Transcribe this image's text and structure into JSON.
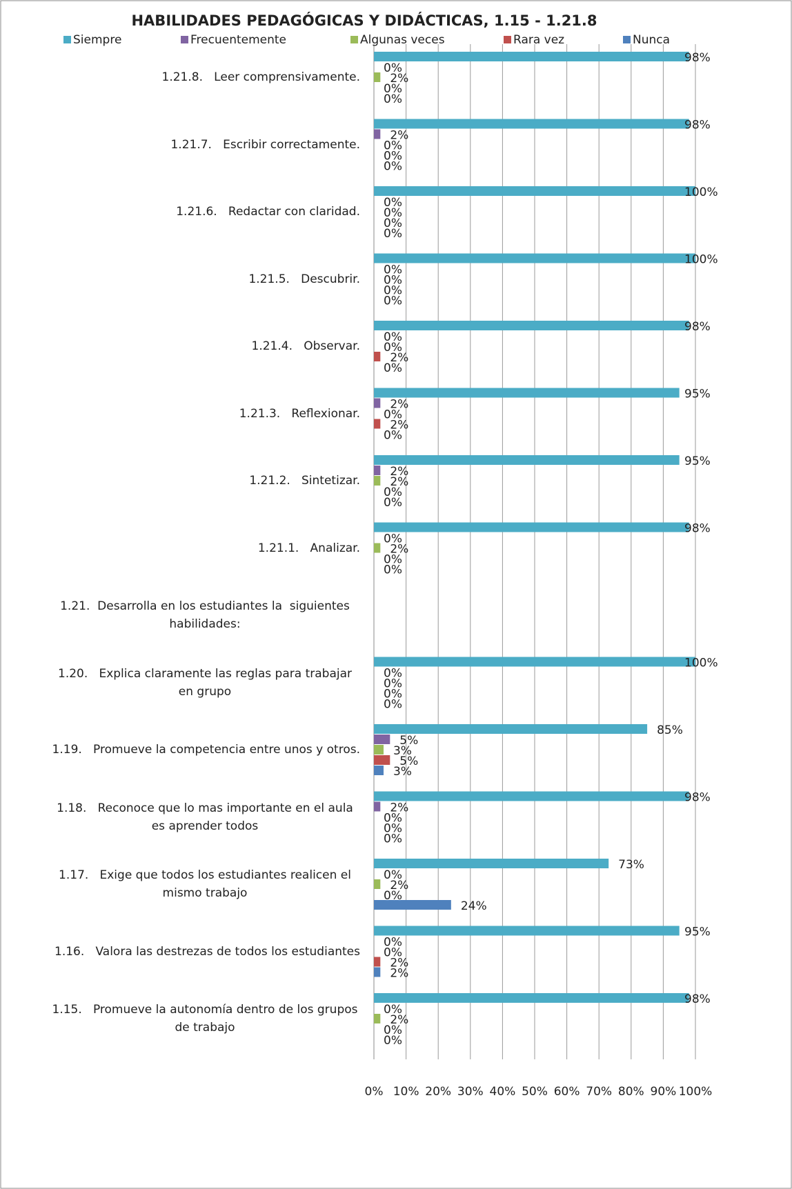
{
  "chart_data": {
    "type": "bar",
    "orientation": "horizontal",
    "title": "HABILIDADES PEDAGÓGICAS Y DIDÁCTICAS, 1.15 - 1.21.8",
    "categories": [
      "1.21.8.   Leer comprensivamente.",
      "1.21.7.   Escribir correctamente.",
      "1.21.6.   Redactar con claridad.",
      "1.21.5.   Descubrir.",
      "1.21.4.   Observar.",
      "1.21.3.   Reflexionar.",
      "1.21.2.   Sintetizar.",
      "1.21.1.   Analizar.",
      "1.21.  Desarrolla en los estudiantes la  siguientes habilidades:",
      "1.20.   Explica claramente las reglas para trabajar en grupo",
      "1.19.   Promueve la competencia entre unos y otros.",
      "1.18.   Reconoce que lo mas importante en el aula es aprender todos",
      "1.17.   Exige que todos los estudiantes realicen el mismo trabajo",
      "1.16.   Valora las destrezas de todos los estudiantes",
      "1.15.   Promueve la autonomía dentro de los grupos de trabajo"
    ],
    "series": [
      {
        "name": "Siempre",
        "color": "#4bacc6",
        "values": [
          98,
          98,
          100,
          100,
          98,
          95,
          95,
          98,
          null,
          100,
          85,
          98,
          73,
          95,
          98
        ],
        "value_labels": [
          "98%",
          "98%",
          "100%",
          "100%",
          "98%",
          "95%",
          "95%",
          "98%",
          null,
          "100%",
          "85%",
          "98%",
          "73%",
          "95%",
          "98%"
        ]
      },
      {
        "name": "Frecuentemente",
        "color": "#8064a2",
        "values": [
          0,
          2,
          0,
          0,
          0,
          2,
          2,
          0,
          null,
          0,
          5,
          2,
          0,
          0,
          0
        ],
        "value_labels": [
          "0%",
          "2%",
          "0%",
          "0%",
          "0%",
          "2%",
          "2%",
          "0%",
          null,
          "0%",
          "5%",
          "2%",
          "0%",
          "0%",
          "0%"
        ]
      },
      {
        "name": "Algunas veces",
        "color": "#9bbb59",
        "values": [
          2,
          0,
          0,
          0,
          0,
          0,
          2,
          2,
          null,
          0,
          3,
          0,
          2,
          0,
          2
        ],
        "value_labels": [
          "2%",
          "0%",
          "0%",
          "0%",
          "0%",
          "0%",
          "2%",
          "2%",
          null,
          "0%",
          "3%",
          "0%",
          "2%",
          "0%",
          "2%"
        ]
      },
      {
        "name": "Rara vez",
        "color": "#c0504d",
        "values": [
          0,
          0,
          0,
          0,
          2,
          2,
          0,
          0,
          null,
          0,
          5,
          0,
          0,
          2,
          0
        ],
        "value_labels": [
          "0%",
          "0%",
          "0%",
          "0%",
          "2%",
          "2%",
          "0%",
          "0%",
          null,
          "0%",
          "5%",
          "0%",
          "0%",
          "2%",
          "0%"
        ]
      },
      {
        "name": "Nunca",
        "color": "#4f81bd",
        "values": [
          0,
          0,
          0,
          0,
          0,
          0,
          0,
          0,
          null,
          0,
          3,
          0,
          24,
          2,
          0
        ],
        "value_labels": [
          "0%",
          "0%",
          "0%",
          "0%",
          "0%",
          "0%",
          "0%",
          "0%",
          null,
          "0%",
          "3%",
          "0%",
          "24%",
          "2%",
          "0%"
        ]
      }
    ],
    "xlim": [
      0,
      100
    ],
    "xticks": [
      {
        "value": 0,
        "label": "0%"
      },
      {
        "value": 10,
        "label": "10%"
      },
      {
        "value": 20,
        "label": "20%"
      },
      {
        "value": 30,
        "label": "30%"
      },
      {
        "value": 40,
        "label": "40%"
      },
      {
        "value": 50,
        "label": "50%"
      },
      {
        "value": 60,
        "label": "60%"
      },
      {
        "value": 70,
        "label": "70%"
      },
      {
        "value": 80,
        "label": "80%"
      },
      {
        "value": 90,
        "label": "90%"
      },
      {
        "value": 100,
        "label": "100%"
      }
    ],
    "grid": true,
    "legend": "top"
  }
}
